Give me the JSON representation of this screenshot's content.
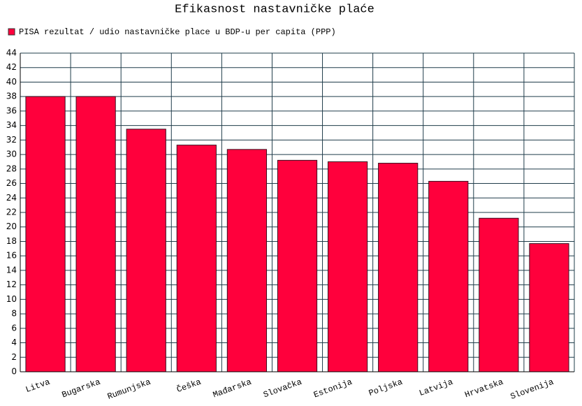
{
  "chart_data": {
    "type": "bar",
    "title": "Efikasnost nastavničke plaće",
    "series": [
      {
        "name": "PISA rezultat / udio nastavničke place u BDP-u per capita (PPP)",
        "color": "#ff003c",
        "values": [
          38,
          38,
          33.5,
          31.3,
          30.7,
          29.2,
          29,
          28.8,
          26.3,
          21.2,
          17.7
        ]
      }
    ],
    "categories": [
      "Litva",
      "Bugarska",
      "Rumunjska",
      "Češka",
      "Mađarska",
      "Slovačka",
      "Estonija",
      "Poljska",
      "Latvija",
      "Hrvatska",
      "Slovenija"
    ],
    "ylim": [
      0,
      44
    ],
    "yticks": [
      0,
      2,
      4,
      6,
      8,
      10,
      12,
      14,
      16,
      18,
      20,
      22,
      24,
      26,
      28,
      30,
      32,
      34,
      36,
      38,
      40,
      42,
      44
    ],
    "grid": true
  }
}
